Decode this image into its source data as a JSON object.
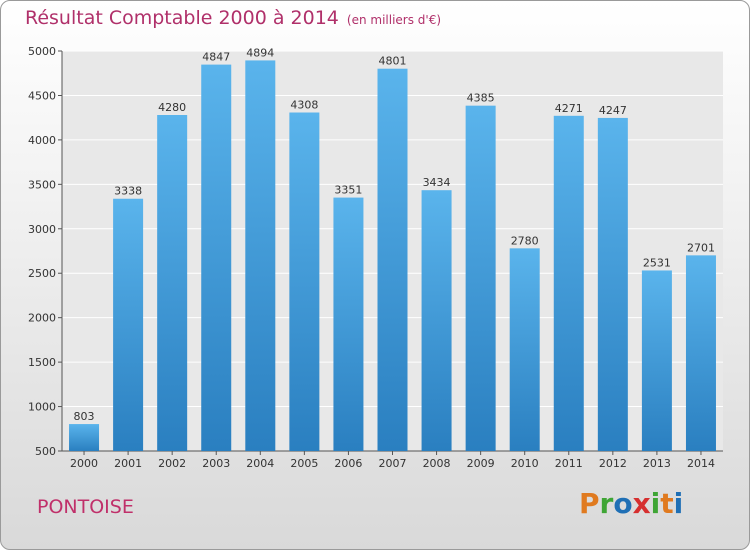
{
  "header": {
    "title": "Résultat Comptable 2000 à 2014",
    "unit": "(en milliers d'€)"
  },
  "footer": {
    "commune": "PONTOISE"
  },
  "brand": {
    "logo_letters": [
      "P",
      "r",
      "o",
      "x",
      "i",
      "t",
      "i"
    ],
    "logo_colors": [
      "#e07a1f",
      "#3fa535",
      "#1f6fb5",
      "#d62f2f",
      "#3fa535",
      "#e07a1f",
      "#1f6fb5"
    ]
  },
  "colors": {
    "bar_top": "#5ab4ec",
    "bar_bottom": "#2a7fc0",
    "title": "#b0306a"
  },
  "chart_data": {
    "type": "bar",
    "title": "Résultat Comptable 2000 à 2014",
    "xlabel": "",
    "ylabel": "",
    "categories": [
      "2000",
      "2001",
      "2002",
      "2003",
      "2004",
      "2005",
      "2006",
      "2007",
      "2008",
      "2009",
      "2010",
      "2011",
      "2012",
      "2013",
      "2014"
    ],
    "values": [
      803,
      3338,
      4280,
      4847,
      4894,
      4308,
      3351,
      4801,
      3434,
      4385,
      2780,
      4271,
      4247,
      2531,
      2701
    ],
    "ylim": [
      500,
      5000
    ],
    "yticks": [
      500,
      1000,
      1500,
      2000,
      2500,
      3000,
      3500,
      4000,
      4500,
      5000
    ],
    "grid": true,
    "legend": "none"
  }
}
